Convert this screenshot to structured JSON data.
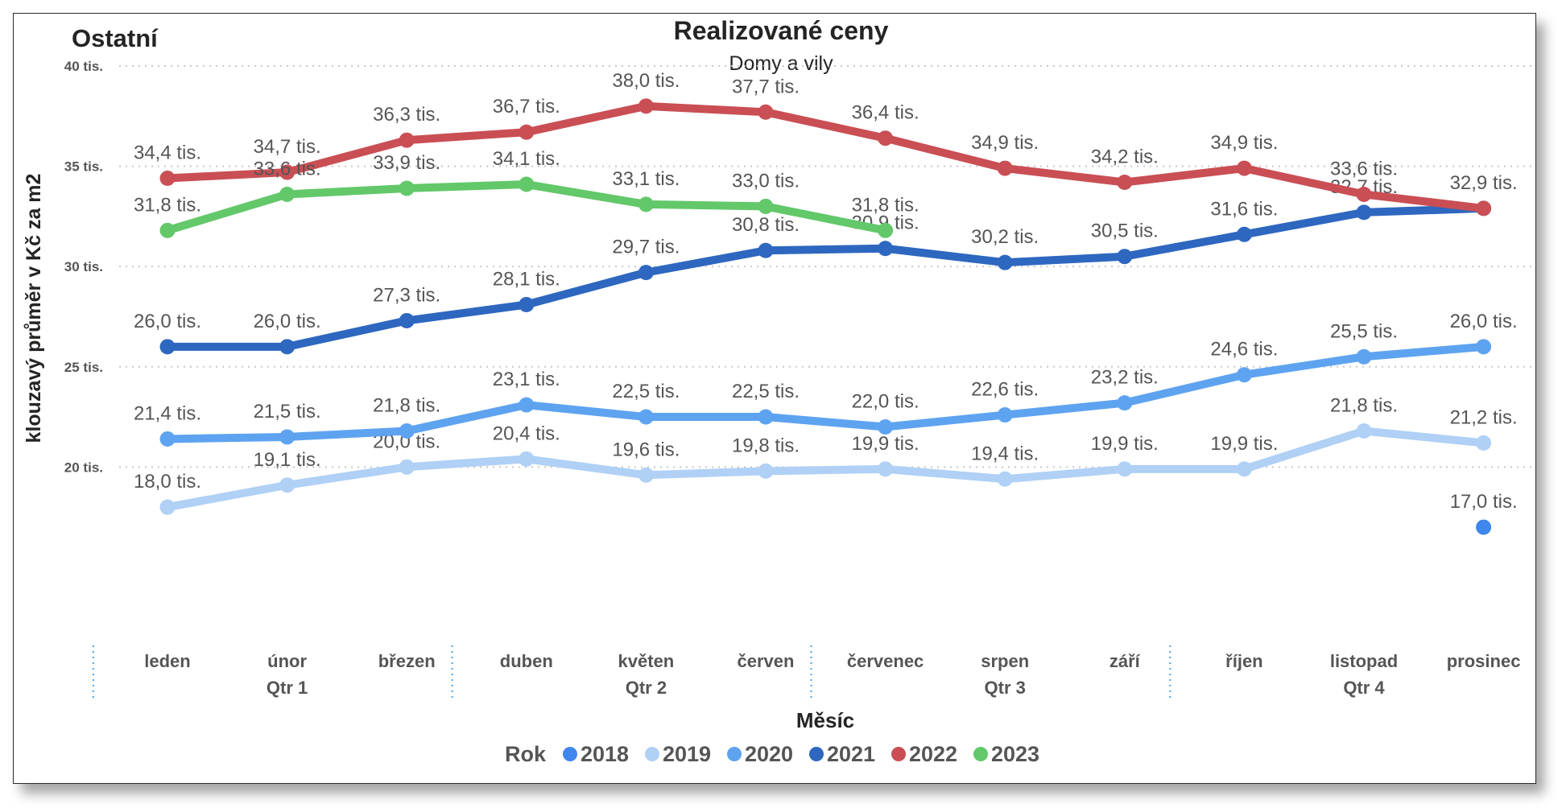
{
  "corner_title": "Ostatní",
  "colors": {
    "2018": "#3f87ec",
    "2019": "#b0d0f5",
    "2020": "#5ea3f0",
    "2021": "#2e67bf",
    "2022": "#c94f55",
    "2023": "#62c86a",
    "text": "#252423",
    "label": "#555555",
    "axis": "#555555",
    "grid": "#c8c8c8",
    "qtr_divider": "#4aa3e8"
  },
  "chart_data": {
    "type": "line",
    "title": "Realizované ceny",
    "subtitle": "Domy a vily",
    "xlabel": "Měsíc",
    "ylabel": "klouzavý průměr v Kč za m2",
    "ylim": [
      16000,
      40000
    ],
    "yticks": [
      20000,
      25000,
      30000,
      35000,
      40000
    ],
    "ytick_labels": [
      "20 tis.",
      "25 tis.",
      "30 tis.",
      "35 tis.",
      "40 tis."
    ],
    "grid": true,
    "categories": [
      "leden",
      "únor",
      "březen",
      "duben",
      "květen",
      "červen",
      "červenec",
      "srpen",
      "září",
      "říjen",
      "listopad",
      "prosinec"
    ],
    "quarters": [
      "Qtr 1",
      "Qtr 2",
      "Qtr 3",
      "Qtr 4"
    ],
    "legend_title": "Rok",
    "legend_position": "bottom",
    "series": [
      {
        "name": "2018",
        "values": [
          null,
          null,
          null,
          null,
          null,
          null,
          null,
          null,
          null,
          null,
          null,
          17000
        ],
        "labels": [
          null,
          null,
          null,
          null,
          null,
          null,
          null,
          null,
          null,
          null,
          null,
          "17,0 tis."
        ]
      },
      {
        "name": "2019",
        "values": [
          18000,
          19100,
          20000,
          20400,
          19600,
          19800,
          19900,
          19400,
          19900,
          19900,
          21800,
          21200
        ],
        "labels": [
          "18,0 tis.",
          "19,1 tis.",
          "20,0 tis.",
          "20,4 tis.",
          "19,6 tis.",
          "19,8 tis.",
          "19,9 tis.",
          "19,4 tis.",
          "19,9 tis.",
          "19,9 tis.",
          "21,8 tis.",
          "21,2 tis."
        ]
      },
      {
        "name": "2020",
        "values": [
          21400,
          21500,
          21800,
          23100,
          22500,
          22500,
          22000,
          22600,
          23200,
          24600,
          25500,
          26000
        ],
        "labels": [
          "21,4 tis.",
          "21,5 tis.",
          "21,8 tis.",
          "23,1 tis.",
          "22,5 tis.",
          "22,5 tis.",
          "22,0 tis.",
          "22,6 tis.",
          "23,2 tis.",
          "24,6 tis.",
          "25,5 tis.",
          "26,0 tis."
        ]
      },
      {
        "name": "2021",
        "values": [
          26000,
          26000,
          27300,
          28100,
          29700,
          30800,
          30900,
          30200,
          30500,
          31600,
          32700,
          32900
        ],
        "labels": [
          "26,0 tis.",
          "26,0 tis.",
          "27,3 tis.",
          "28,1 tis.",
          "29,7 tis.",
          "30,8 tis.",
          "30,9 tis.",
          "30,2 tis.",
          "30,5 tis.",
          "31,6 tis.",
          "32,7 tis.",
          null
        ]
      },
      {
        "name": "2022",
        "values": [
          34400,
          34700,
          36300,
          36700,
          38000,
          37700,
          36400,
          34900,
          34200,
          34900,
          33600,
          32900
        ],
        "labels": [
          "34,4 tis.",
          "34,7 tis.",
          "36,3 tis.",
          "36,7 tis.",
          "38,0 tis.",
          "37,7 tis.",
          "36,4 tis.",
          "34,9 tis.",
          "34,2 tis.",
          "34,9 tis.",
          "33,6 tis.",
          "32,9 tis."
        ]
      },
      {
        "name": "2023",
        "values": [
          31800,
          33600,
          33900,
          34100,
          33100,
          33000,
          31800,
          null,
          null,
          null,
          null,
          null
        ],
        "labels": [
          "31,8 tis.",
          "33,6 tis.",
          "33,9 tis.",
          "34,1 tis.",
          "33,1 tis.",
          "33,0 tis.",
          "31,8 tis.",
          null,
          null,
          null,
          null,
          null
        ]
      }
    ]
  }
}
